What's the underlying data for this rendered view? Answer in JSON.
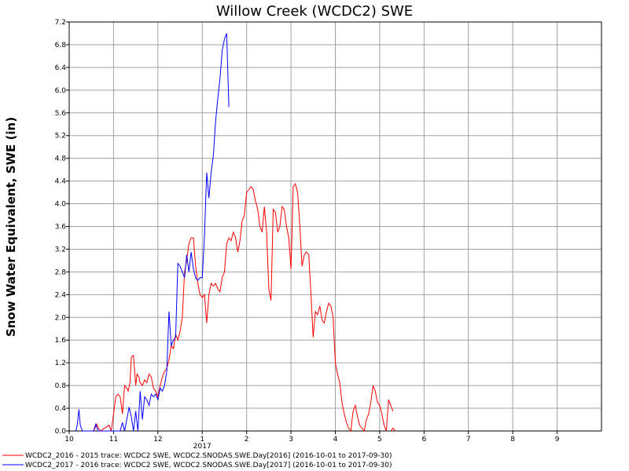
{
  "chart_data": {
    "type": "line",
    "title": "Willow Creek (WCDC2) SWE",
    "xlabel": "",
    "ylabel": "Snow Water Equivalent, SWE (in)",
    "ylim": [
      0,
      7.2
    ],
    "yticks": [
      "0.0",
      "0.4",
      "0.8",
      "1.2",
      "1.6",
      "2.0",
      "2.4",
      "2.8",
      "3.2",
      "3.6",
      "4.0",
      "4.4",
      "4.8",
      "5.2",
      "5.6",
      "6.0",
      "6.4",
      "6.8",
      "7.2"
    ],
    "xticks": [
      {
        "label": "10",
        "x": 10
      },
      {
        "label": "11",
        "x": 11
      },
      {
        "label": "12",
        "x": 12
      },
      {
        "label": "1",
        "x": 13
      },
      {
        "label": "2",
        "x": 14
      },
      {
        "label": "3",
        "x": 15
      },
      {
        "label": "4",
        "x": 16
      },
      {
        "label": "5",
        "x": 17
      },
      {
        "label": "6",
        "x": 18
      },
      {
        "label": "7",
        "x": 19
      },
      {
        "label": "8",
        "x": 20
      },
      {
        "label": "9",
        "x": 21
      }
    ],
    "year_label": "2017",
    "year_label_at": 13,
    "xlim": [
      10,
      22
    ],
    "grid": true,
    "legend_placement": "bottom-left",
    "series": [
      {
        "name": "WCDC2_2016 - 2015 trace: WCDC2 SWE, WCDC2.SNODAS.SWE.Day[2016] (2016-10-01 to 2017-09-30)",
        "color": "#ff0000",
        "x": [
          10.55,
          10.58,
          10.62,
          10.66,
          10.7,
          10.8,
          10.9,
          10.95,
          11.05,
          11.1,
          11.15,
          11.2,
          11.25,
          11.3,
          11.33,
          11.37,
          11.4,
          11.45,
          11.5,
          11.53,
          11.57,
          11.6,
          11.65,
          11.7,
          11.75,
          11.8,
          11.85,
          11.9,
          11.95,
          12.0,
          12.05,
          12.1,
          12.15,
          12.2,
          12.25,
          12.3,
          12.35,
          12.4,
          12.45,
          12.5,
          12.55,
          12.6,
          12.65,
          12.7,
          12.75,
          12.8,
          12.85,
          12.9,
          12.95,
          13.0,
          13.05,
          13.1,
          13.15,
          13.2,
          13.25,
          13.3,
          13.35,
          13.4,
          13.45,
          13.5,
          13.55,
          13.6,
          13.65,
          13.7,
          13.75,
          13.8,
          13.85,
          13.9,
          13.95,
          14.0,
          14.05,
          14.1,
          14.15,
          14.2,
          14.25,
          14.3,
          14.35,
          14.4,
          14.45,
          14.5,
          14.55,
          14.6,
          14.65,
          14.7,
          14.75,
          14.8,
          14.85,
          14.9,
          14.95,
          15.0,
          15.05,
          15.1,
          15.15,
          15.2,
          15.25,
          15.3,
          15.35,
          15.4,
          15.45,
          15.5,
          15.55,
          15.6,
          15.65,
          15.7,
          15.75,
          15.8,
          15.85,
          15.9,
          15.95,
          16.0,
          16.05,
          16.1,
          16.15,
          16.2,
          16.25,
          16.3,
          16.35,
          16.4,
          16.45,
          16.5,
          16.55,
          16.6,
          16.65,
          16.7,
          16.75,
          16.8,
          16.85,
          16.9,
          16.95,
          17.0,
          17.05,
          17.1,
          17.15,
          17.2,
          17.25,
          17.3
        ],
        "y": [
          0.0,
          0.05,
          0.12,
          0.05,
          0.0,
          0.05,
          0.1,
          0.0,
          0.6,
          0.65,
          0.6,
          0.3,
          0.8,
          0.75,
          0.7,
          0.85,
          1.3,
          1.33,
          0.8,
          1.0,
          0.95,
          0.85,
          0.8,
          0.9,
          0.85,
          1.0,
          0.95,
          0.75,
          0.7,
          0.6,
          0.8,
          0.95,
          1.05,
          1.1,
          1.25,
          1.5,
          1.45,
          1.7,
          1.6,
          1.75,
          2.0,
          2.8,
          3.0,
          3.3,
          3.4,
          3.4,
          2.9,
          2.6,
          2.4,
          2.35,
          2.4,
          1.9,
          2.4,
          2.6,
          2.55,
          2.6,
          2.5,
          2.45,
          2.7,
          2.8,
          3.3,
          3.4,
          3.35,
          3.5,
          3.4,
          3.15,
          3.35,
          3.7,
          3.8,
          4.2,
          4.25,
          4.3,
          4.25,
          4.05,
          3.9,
          3.6,
          3.5,
          3.95,
          3.5,
          2.5,
          2.3,
          3.9,
          3.85,
          3.5,
          3.6,
          3.95,
          3.9,
          3.6,
          3.4,
          2.85,
          4.3,
          4.35,
          4.2,
          3.6,
          2.9,
          3.1,
          3.15,
          3.1,
          2.4,
          1.65,
          2.1,
          2.05,
          2.2,
          1.95,
          1.9,
          2.1,
          2.25,
          2.2,
          2.0,
          1.2,
          1.0,
          0.85,
          0.5,
          0.3,
          0.15,
          0.05,
          0.0,
          0.35,
          0.45,
          0.25,
          0.1,
          0.05,
          0.0,
          0.2,
          0.3,
          0.5,
          0.8,
          0.7,
          0.5,
          0.45,
          0.3,
          0.1,
          0.0,
          0.55,
          0.45,
          0.35
        ],
        "tail_x": [
          17.25,
          17.3,
          17.35
        ],
        "tail_y": [
          0.0,
          0.05,
          0.0
        ]
      },
      {
        "name": "WCDC2_2017 - 2016 trace: WCDC2 SWE, WCDC2.SNODAS.SWE.Day[2017] (2016-10-01 to 2017-09-30)",
        "color": "#0000ff",
        "x": [
          10.15,
          10.18,
          10.22,
          10.25,
          10.3,
          10.35,
          10.55,
          10.6,
          10.65,
          11.15,
          11.2,
          11.25,
          11.35,
          11.4,
          11.45,
          11.5,
          11.55,
          11.6,
          11.65,
          11.7,
          11.75,
          11.8,
          11.85,
          11.9,
          11.95,
          12.0,
          12.05,
          12.1,
          12.15,
          12.2,
          12.25,
          12.3,
          12.35,
          12.4,
          12.45,
          12.5,
          12.55,
          12.6,
          12.65,
          12.7,
          12.75,
          12.8,
          12.85,
          12.9,
          12.95,
          13.0,
          13.05,
          13.1,
          13.15,
          13.2,
          13.25,
          13.3,
          13.35,
          13.4,
          13.45,
          13.5,
          13.55,
          13.6
        ],
        "y": [
          0.0,
          0.1,
          0.38,
          0.1,
          0.0,
          0.0,
          0.0,
          0.12,
          0.0,
          0.0,
          0.15,
          0.0,
          0.42,
          0.25,
          0.0,
          0.35,
          0.0,
          0.7,
          0.2,
          0.6,
          0.55,
          0.45,
          0.65,
          0.6,
          0.65,
          0.55,
          0.75,
          0.7,
          0.8,
          1.05,
          2.1,
          1.5,
          1.6,
          1.65,
          2.95,
          2.9,
          2.8,
          2.7,
          3.1,
          2.8,
          3.15,
          2.85,
          2.7,
          2.65,
          2.7,
          2.7,
          3.45,
          4.55,
          4.1,
          4.55,
          4.85,
          5.45,
          5.85,
          6.2,
          6.7,
          6.9,
          7.0,
          5.7
        ]
      }
    ]
  }
}
